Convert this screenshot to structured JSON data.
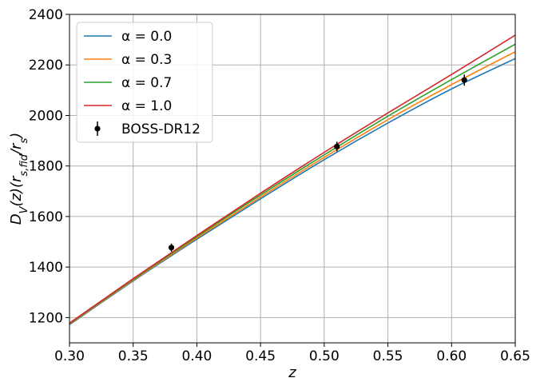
{
  "chart_data": {
    "type": "line",
    "xlabel": "z",
    "ylabel": "D_V(z)(r_s,fid/r_s)",
    "xlim": [
      0.3,
      0.65
    ],
    "ylim": [
      1100,
      2400
    ],
    "x_ticks": [
      "0.30",
      "0.35",
      "0.40",
      "0.45",
      "0.50",
      "0.55",
      "0.60",
      "0.65"
    ],
    "y_ticks": [
      "1200",
      "1400",
      "1600",
      "1800",
      "2000",
      "2200",
      "2400"
    ],
    "grid": true,
    "legend_position": "top-left",
    "series": [
      {
        "name": "α = 0.0",
        "color": "#1f77b4",
        "x": [
          0.3,
          0.35,
          0.4,
          0.45,
          0.5,
          0.55,
          0.6,
          0.65
        ],
        "y": [
          1172,
          1345,
          1510,
          1670,
          1825,
          1970,
          2105,
          2225
        ]
      },
      {
        "name": "α = 0.3",
        "color": "#ff7f0e",
        "x": [
          0.3,
          0.35,
          0.4,
          0.45,
          0.5,
          0.55,
          0.6,
          0.65
        ],
        "y": [
          1174,
          1348,
          1515,
          1677,
          1834,
          1983,
          2122,
          2252
        ]
      },
      {
        "name": "α = 0.7",
        "color": "#2ca02c",
        "x": [
          0.3,
          0.35,
          0.4,
          0.45,
          0.5,
          0.55,
          0.6,
          0.65
        ],
        "y": [
          1176,
          1351,
          1520,
          1685,
          1844,
          1997,
          2142,
          2282
        ]
      },
      {
        "name": "α = 1.0",
        "color": "#d62728",
        "x": [
          0.3,
          0.35,
          0.4,
          0.45,
          0.5,
          0.55,
          0.6,
          0.65
        ],
        "y": [
          1178,
          1354,
          1525,
          1692,
          1854,
          2010,
          2162,
          2318
        ]
      }
    ],
    "observations": {
      "name": "BOSS-DR12",
      "color": "#000000",
      "points": [
        {
          "x": 0.38,
          "y": 1477,
          "err": 16
        },
        {
          "x": 0.51,
          "y": 1877,
          "err": 19
        },
        {
          "x": 0.61,
          "y": 2140,
          "err": 22
        }
      ]
    }
  }
}
